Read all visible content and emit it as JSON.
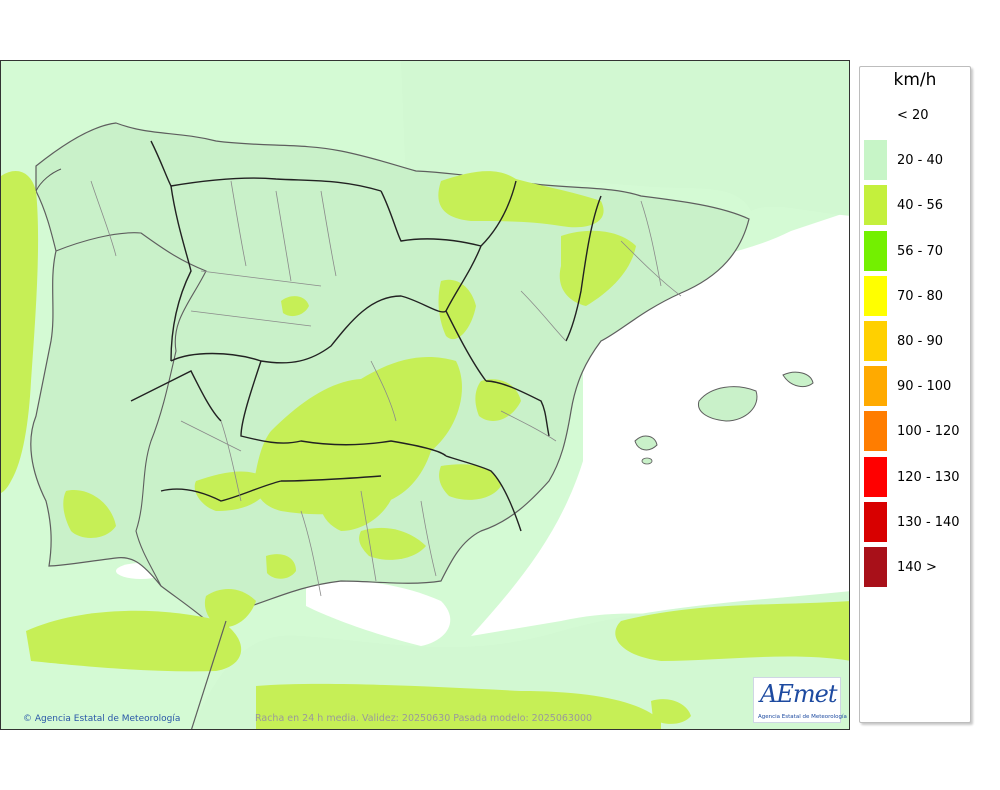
{
  "map": {
    "copyright": "Agencia Estatal de Meteorología",
    "caption": "Racha en 24 h media. Validez: 20250630 Pasada modelo: 2025063000",
    "logo_text": "AEmet",
    "logo_subtext": "Agencia Estatal de Meteorología",
    "sea_color": "#ffffff",
    "land_color": "#cbf3cb"
  },
  "legend": {
    "title": "km/h",
    "items": [
      {
        "label": "< 20",
        "color": "#ffffff"
      },
      {
        "label": "20 - 40",
        "color": "#c7f5c7"
      },
      {
        "label": "40 - 56",
        "color": "#c4f03c"
      },
      {
        "label": "56 - 70",
        "color": "#73f000"
      },
      {
        "label": "70 - 80",
        "color": "#ffff00"
      },
      {
        "label": "80 - 90",
        "color": "#ffd000"
      },
      {
        "label": "90 - 100",
        "color": "#ffaa00"
      },
      {
        "label": "100 - 120",
        "color": "#ff7d00"
      },
      {
        "label": "120 - 130",
        "color": "#ff0000"
      },
      {
        "label": "130 - 140",
        "color": "#d80000"
      },
      {
        "label": "140 >",
        "color": "#a81019"
      }
    ]
  }
}
